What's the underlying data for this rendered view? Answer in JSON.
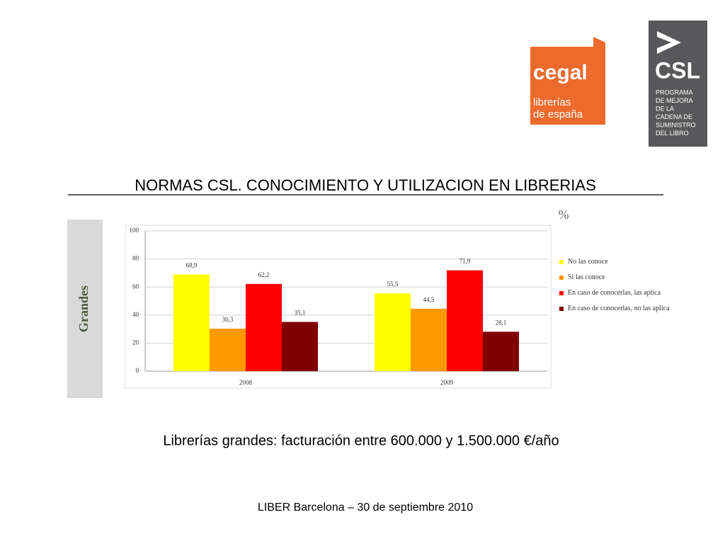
{
  "logo_cegal": {
    "name": "cegal",
    "line1": "librerías",
    "line2": "de españa"
  },
  "logo_csl": {
    "name": "CSL",
    "lines": [
      "PROGRAMA",
      "DE MEJORA",
      "DE LA",
      "CADENA DE",
      "SUMINISTRO",
      "DEL LIBRO"
    ]
  },
  "title": "NORMAS CSL. CONOCIMIENTO Y UTILIZACION EN LIBRERIAS",
  "chart_data": {
    "type": "bar",
    "side_label": "Grandes",
    "unit": "%",
    "categories": [
      "2008",
      "2009"
    ],
    "series": [
      {
        "name": "No las conoce",
        "color": "#ffff00",
        "values": [
          68.9,
          55.5
        ],
        "value_labels": [
          "68,9",
          "55,5"
        ]
      },
      {
        "name": "Si las conoce",
        "color": "#ff9900",
        "values": [
          30.3,
          44.5
        ],
        "value_labels": [
          "30,3",
          "44,5"
        ]
      },
      {
        "name": "En caso de conocerlas, las aplica",
        "color": "#ff0000",
        "values": [
          62.2,
          71.9
        ],
        "value_labels": [
          "62,2",
          "71,9"
        ]
      },
      {
        "name": "En caso de conocerlas, no las aplica",
        "color": "#800000",
        "values": [
          35.1,
          28.1
        ],
        "value_labels": [
          "35,1",
          "28,1"
        ]
      }
    ],
    "ylim": [
      0,
      100
    ],
    "yticks": [
      0,
      20,
      40,
      60,
      80,
      100
    ],
    "grid": true,
    "legend": "right"
  },
  "caption": "Librerías grandes: facturación entre 600.000 y 1.500.000 €/año",
  "footer": "LIBER Barcelona – 30 de septiembre 2010"
}
